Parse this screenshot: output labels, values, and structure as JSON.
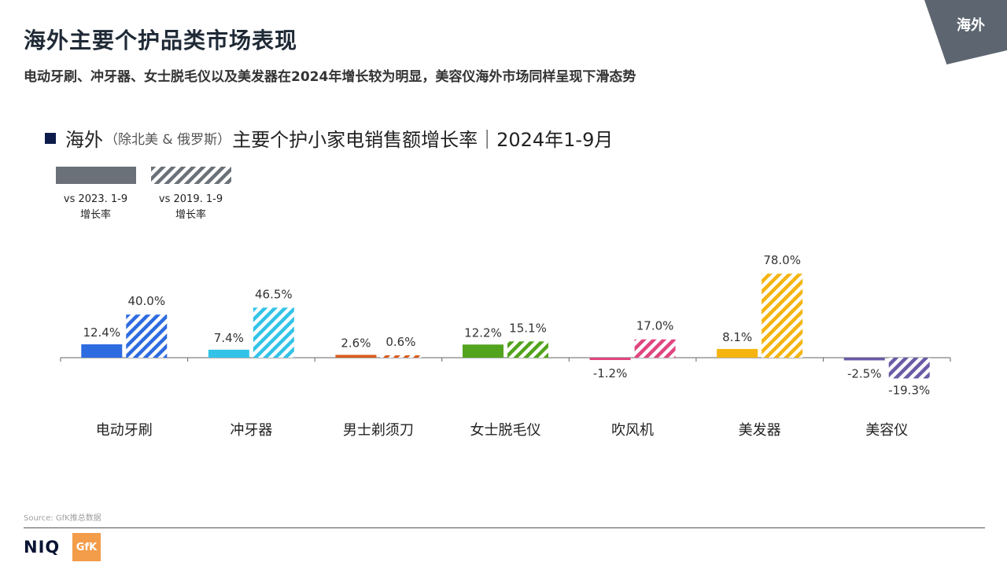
{
  "header": {
    "title": "海外主要个护品类市场表现",
    "subtitle": "电动牙刷、冲牙器、女士脱毛仪以及美发器在2024年增长较为明显，美容仪海外市场同样呈现下滑态势",
    "corner_tag": "海外"
  },
  "chart_heading": {
    "part1": "海外",
    "part2": "（除北美 & 俄罗斯）",
    "part3": "主要个护小家电销售额增长率｜2024年1-9月"
  },
  "legend": [
    {
      "label_line1": "vs  2023. 1-9",
      "label_line2": "增长率",
      "style": "solid"
    },
    {
      "label_line1": "vs  2019. 1-9",
      "label_line2": "增长率",
      "style": "hatched"
    }
  ],
  "chart_data": {
    "type": "bar",
    "categories": [
      "电动牙刷",
      "冲牙器",
      "男士剃须刀",
      "女士脱毛仪",
      "吹风机",
      "美发器",
      "美容仪"
    ],
    "colors": [
      "#2d6be0",
      "#33c3e8",
      "#d95b1c",
      "#52a31d",
      "#e0457f",
      "#f5b40f",
      "#6a5aa6"
    ],
    "series": [
      {
        "values": [
          12.4,
          7.4,
          2.6,
          12.2,
          -1.2,
          8.1,
          -2.5
        ],
        "labels": [
          "12.4%",
          "7.4%",
          "2.6%",
          "12.2%",
          "-1.2%",
          "8.1%",
          "-2.5%"
        ],
        "style": "solid"
      },
      {
        "values": [
          40.0,
          46.5,
          0.6,
          15.1,
          17.0,
          78.0,
          -19.3
        ],
        "labels": [
          "40.0%",
          "46.5%",
          "0.6%",
          "15.1%",
          "17.0%",
          "78.0%",
          "-19.3%"
        ],
        "style": "hatched"
      }
    ],
    "negative_bar_colors": [
      "#33c3e8",
      "#6a5aa6"
    ],
    "ylabel": "",
    "xlabel": ""
  },
  "footer": {
    "source": "Source: GfK推总数据",
    "niq": "NIQ",
    "gfk": "GfK"
  }
}
